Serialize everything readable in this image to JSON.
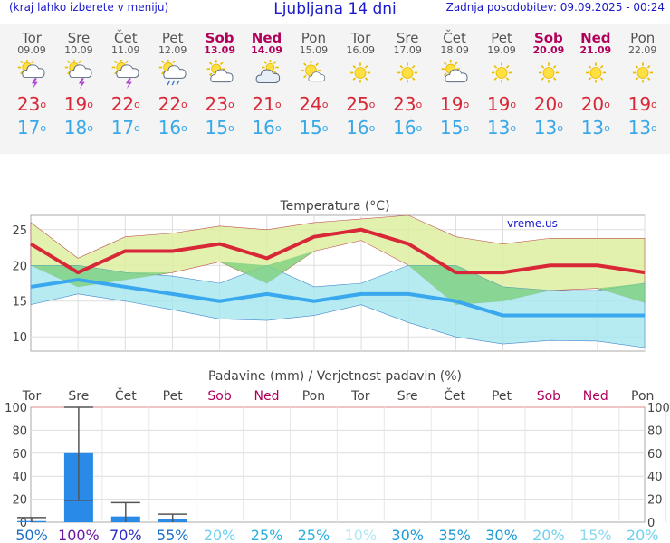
{
  "header": {
    "menu_hint": "(kraj lahko izberete v meniju)",
    "title": "Ljubljana 14 dni",
    "updated": "Zadnja posodobitev: 09.09.2025 - 00:24"
  },
  "colors": {
    "max_temp": "#d82838",
    "min_temp": "#38a8e8",
    "weekend": "#b0005a",
    "precip_bar": "#2a8ae8",
    "band_max": "#ddf0a0",
    "band_min": "#a4e6ee"
  },
  "days": [
    {
      "name": "Tor",
      "date": "09.09",
      "weekend": false,
      "icon": "sun-cloud-lightning-icon",
      "tmax": "23",
      "tmin": "17"
    },
    {
      "name": "Sre",
      "date": "10.09",
      "weekend": false,
      "icon": "sun-cloud-lightning-icon",
      "tmax": "19",
      "tmin": "18"
    },
    {
      "name": "Čet",
      "date": "11.09",
      "weekend": false,
      "icon": "sun-cloud-lightning-icon",
      "tmax": "22",
      "tmin": "17"
    },
    {
      "name": "Pet",
      "date": "12.09",
      "weekend": false,
      "icon": "sun-cloud-rain-icon",
      "tmax": "22",
      "tmin": "16"
    },
    {
      "name": "Sob",
      "date": "13.09",
      "weekend": true,
      "icon": "sun-cloud-icon",
      "tmax": "23",
      "tmin": "15"
    },
    {
      "name": "Ned",
      "date": "14.09",
      "weekend": true,
      "icon": "cloud-icon",
      "tmax": "21",
      "tmin": "16"
    },
    {
      "name": "Pon",
      "date": "15.09",
      "weekend": false,
      "icon": "sun-small-cloud-icon",
      "tmax": "24",
      "tmin": "15"
    },
    {
      "name": "Tor",
      "date": "16.09",
      "weekend": false,
      "icon": "sun-icon",
      "tmax": "25",
      "tmin": "16"
    },
    {
      "name": "Sre",
      "date": "17.09",
      "weekend": false,
      "icon": "sun-icon",
      "tmax": "23",
      "tmin": "16"
    },
    {
      "name": "Čet",
      "date": "18.09",
      "weekend": false,
      "icon": "sun-cloud-icon",
      "tmax": "19",
      "tmin": "15"
    },
    {
      "name": "Pet",
      "date": "19.09",
      "weekend": false,
      "icon": "sun-icon",
      "tmax": "19",
      "tmin": "13"
    },
    {
      "name": "Sob",
      "date": "20.09",
      "weekend": true,
      "icon": "sun-icon",
      "tmax": "20",
      "tmin": "13"
    },
    {
      "name": "Ned",
      "date": "21.09",
      "weekend": true,
      "icon": "sun-icon",
      "tmax": "20",
      "tmin": "13"
    },
    {
      "name": "Pon",
      "date": "22.09",
      "weekend": false,
      "icon": "sun-icon",
      "tmax": "19",
      "tmin": "13"
    }
  ],
  "chart_data": [
    {
      "type": "line",
      "title": "Temperatura (°C)",
      "watermark": "vreme.us",
      "categories": [
        "09.09",
        "10.09",
        "11.09",
        "12.09",
        "13.09",
        "14.09",
        "15.09",
        "16.09",
        "17.09",
        "18.09",
        "19.09",
        "20.09",
        "21.09",
        "22.09"
      ],
      "ylim": [
        8,
        27
      ],
      "yticks": [
        10,
        15,
        20,
        25
      ],
      "grid": true,
      "series": [
        {
          "values": [
            23,
            19,
            22,
            22,
            23,
            21,
            24,
            25,
            23,
            19,
            19,
            20,
            20,
            19
          ]
        },
        {
          "values": [
            17,
            18,
            17,
            16,
            15,
            16,
            15,
            16,
            16,
            15,
            13,
            13,
            13,
            13
          ]
        }
      ],
      "bands": [
        {
          "upper": [
            26,
            21,
            24,
            24.5,
            25.5,
            25,
            26,
            26.5,
            27,
            24,
            23,
            23.8,
            23.8,
            23.8
          ],
          "lower": [
            20,
            17,
            18,
            19,
            20.5,
            17.5,
            22,
            23.5,
            20,
            14.5,
            15,
            16.5,
            16.8,
            14.8
          ]
        },
        {
          "upper": [
            20,
            20,
            19,
            18.5,
            17.5,
            20,
            17,
            17.5,
            20,
            20,
            17,
            16.5,
            16.5,
            17.5
          ],
          "lower": [
            14.5,
            16,
            15,
            13.8,
            12.5,
            12.3,
            13,
            14.5,
            12,
            10,
            9,
            9.5,
            9.4,
            8.5
          ]
        }
      ]
    },
    {
      "type": "bar",
      "title": "Padavine (mm) / Verjetnost padavin (%)",
      "day_labels": [
        "Tor",
        "Sre",
        "Čet",
        "Pet",
        "Sob",
        "Ned",
        "Pon",
        "Tor",
        "Sre",
        "Čet",
        "Pet",
        "Sob",
        "Ned",
        "Pon"
      ],
      "weekend": [
        false,
        false,
        false,
        false,
        true,
        true,
        false,
        false,
        false,
        false,
        false,
        true,
        true,
        false
      ],
      "values": [
        1,
        60,
        5,
        3,
        0,
        0,
        0,
        0,
        0,
        0,
        0,
        0,
        0,
        0
      ],
      "error_high": [
        4,
        103,
        17,
        7,
        null,
        null,
        null,
        null,
        null,
        null,
        null,
        null,
        null,
        null
      ],
      "error_low": [
        0,
        19,
        0,
        0,
        null,
        null,
        null,
        null,
        null,
        null,
        null,
        null,
        null,
        null
      ],
      "probability": [
        "50%",
        "100%",
        "70%",
        "55%",
        "20%",
        "25%",
        "25%",
        "10%",
        "30%",
        "35%",
        "30%",
        "20%",
        "15%",
        "20%"
      ],
      "ylim": [
        0,
        100
      ],
      "yticks": [
        0,
        20,
        40,
        60,
        80,
        100
      ],
      "grid": true
    }
  ]
}
